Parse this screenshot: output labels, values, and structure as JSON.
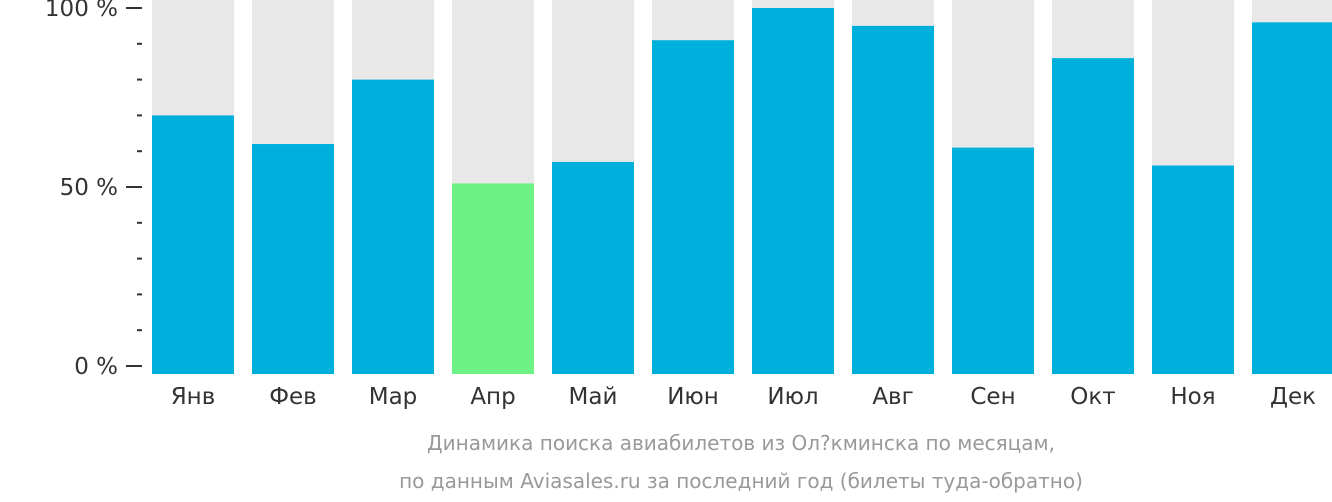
{
  "chart_data": {
    "type": "bar",
    "categories": [
      "Янв",
      "Фев",
      "Мар",
      "Апр",
      "Май",
      "Июн",
      "Июл",
      "Авг",
      "Сен",
      "Окт",
      "Ноя",
      "Дек"
    ],
    "values": [
      70,
      62,
      80,
      51,
      57,
      91,
      100,
      95,
      61,
      86,
      56,
      96
    ],
    "ylim": [
      0,
      100
    ],
    "yticks": [
      {
        "value": 0,
        "label": "0 %"
      },
      {
        "value": 50,
        "label": "50 %"
      },
      {
        "value": 100,
        "label": "100 %"
      }
    ],
    "minor_tick_step": 10,
    "highlight_category": "Апр",
    "caption_lines": [
      "Динамика поиска авиабилетов из Ол?кминска по месяцам,",
      "по данным Aviasales.ru за последний год (билеты туда-обратно)"
    ],
    "colors": {
      "bar": "#00b0dc",
      "highlight": "#6df285",
      "background_bar": "#e8e8e8",
      "axis": "#333333",
      "caption": "#999999"
    }
  }
}
